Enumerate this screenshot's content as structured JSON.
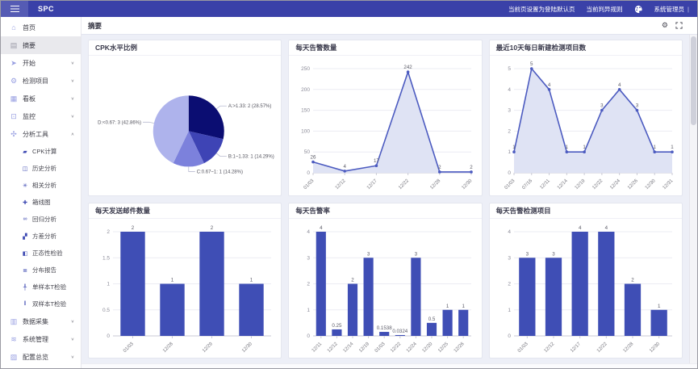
{
  "navbar": {
    "brand": "SPC",
    "set_default_link": "当前页设置为登陆默认页",
    "judge_rules_link": "当前判异规则",
    "user": "系统管理员",
    "user_divider": "|"
  },
  "tabbar": {
    "active_tab": "摘要"
  },
  "sidebar": {
    "items": [
      {
        "id": "home",
        "label": "首页",
        "icon": "home"
      },
      {
        "id": "summary",
        "label": "摘要",
        "icon": "summary",
        "active": true
      },
      {
        "id": "start",
        "label": "开始",
        "icon": "start",
        "chevron": "down"
      },
      {
        "id": "detection-items",
        "label": "检测项目",
        "icon": "gear",
        "chevron": "down"
      },
      {
        "id": "board",
        "label": "看板",
        "icon": "board",
        "chevron": "down"
      },
      {
        "id": "monitor",
        "label": "监控",
        "icon": "monitor",
        "chevron": "down"
      },
      {
        "id": "analysis-tools",
        "label": "分析工具",
        "icon": "analysis",
        "chevron": "up",
        "expanded": true,
        "children": [
          {
            "id": "cpk-calc",
            "label": "CPK计算",
            "icon": "cpk"
          },
          {
            "id": "history-analysis",
            "label": "历史分析",
            "icon": "history"
          },
          {
            "id": "correlation-analysis",
            "label": "相关分析",
            "icon": "correlation"
          },
          {
            "id": "boxplot",
            "label": "箱线图",
            "icon": "boxplot"
          },
          {
            "id": "regression-analysis",
            "label": "回归分析",
            "icon": "regression"
          },
          {
            "id": "anova",
            "label": "方差分析",
            "icon": "anova"
          },
          {
            "id": "normality-test",
            "label": "正态性检验",
            "icon": "normality"
          },
          {
            "id": "distribution-report",
            "label": "分布报告",
            "icon": "distribution"
          },
          {
            "id": "one-sample-t-test",
            "label": "单样本T检验",
            "icon": "t-one"
          },
          {
            "id": "two-sample-t-test",
            "label": "双样本T检验",
            "icon": "t-two"
          }
        ]
      },
      {
        "id": "data-collection",
        "label": "数据采集",
        "icon": "data",
        "chevron": "down"
      },
      {
        "id": "system-management",
        "label": "系统管理",
        "icon": "system",
        "chevron": "down"
      },
      {
        "id": "config-overview",
        "label": "配置总览",
        "icon": "config",
        "chevron": "down"
      }
    ]
  },
  "colors": {
    "navbar_bg": "#3a41a8",
    "content_bg": "#edeff7",
    "bar": "#3f4eb5",
    "line": "#4c5bc0",
    "area": "#dfe3f4",
    "pie": [
      "#0b0d72",
      "#3e44b5",
      "#7c81dc",
      "#aeb3ec"
    ]
  },
  "panels": [
    {
      "id": "cpk-level-ratio",
      "title": "CPK水平比例",
      "chart_data": {
        "type": "pie",
        "categories": [
          "A:>1.33",
          "B:1~1.33",
          "C:0.67~1",
          "D:<0.67"
        ],
        "values": [
          2,
          1,
          1,
          3
        ],
        "percents": [
          28.57,
          14.29,
          14.28,
          42.86
        ],
        "labels": [
          "A:>1.33: 2 (28.57%)",
          "B:1~1.33: 1 (14.29%)",
          "C:0.67~1: 1 (14.28%)",
          "D:<0.67: 3 (42.86%)"
        ],
        "colors": [
          "#0b0d72",
          "#3e44b5",
          "#7c81dc",
          "#aeb3ec"
        ]
      }
    },
    {
      "id": "daily-alert-count",
      "title": "每天告警数量",
      "chart_data": {
        "type": "line",
        "x": [
          "01/03",
          "12/12",
          "12/17",
          "12/22",
          "12/28",
          "12/30"
        ],
        "values": [
          26,
          4,
          17,
          242,
          2,
          2
        ],
        "ylim": [
          0,
          250
        ],
        "yticks": [
          0,
          50,
          100,
          150,
          200,
          250
        ],
        "color": "#4c5bc0",
        "area": "#dfe3f4"
      }
    },
    {
      "id": "new-detection-items-10d",
      "title": "最近10天每日新建检测项目数",
      "chart_data": {
        "type": "line",
        "x": [
          "01/03",
          "07/16",
          "12/11",
          "12/14",
          "12/19",
          "12/22",
          "12/24",
          "12/26",
          "12/30",
          "12/31"
        ],
        "values": [
          1,
          5,
          4,
          1,
          1,
          3,
          4,
          3,
          1,
          1
        ],
        "ylim": [
          0,
          5
        ],
        "yticks": [
          0,
          1,
          2,
          3,
          4,
          5
        ],
        "color": "#4c5bc0",
        "area": "#dfe3f4"
      }
    },
    {
      "id": "daily-emails-sent",
      "title": "每天发送邮件数量",
      "chart_data": {
        "type": "bar",
        "x": [
          "01/03",
          "12/28",
          "12/29",
          "12/30"
        ],
        "values": [
          2,
          1,
          2,
          1
        ],
        "ylim": [
          0,
          2
        ],
        "yticks": [
          0,
          0.5,
          1,
          1.5,
          2
        ],
        "color": "#3f4eb5"
      }
    },
    {
      "id": "daily-alert-rate",
      "title": "每天告警率",
      "chart_data": {
        "type": "bar",
        "x": [
          "12/11",
          "12/12",
          "12/14",
          "12/19",
          "01/03",
          "12/22",
          "12/24",
          "12/20",
          "12/25",
          "12/26"
        ],
        "values": [
          4,
          0.25,
          2,
          3,
          0.1538,
          0.0324,
          3,
          0.5,
          1,
          1
        ],
        "ylim": [
          0,
          4
        ],
        "yticks": [
          0,
          1,
          2,
          3,
          4
        ],
        "color": "#3f4eb5"
      }
    },
    {
      "id": "daily-alert-detection-items",
      "title": "每天告警检测项目",
      "chart_data": {
        "type": "bar",
        "x": [
          "01/03",
          "12/12",
          "12/17",
          "12/22",
          "12/28",
          "12/30"
        ],
        "values": [
          3,
          3,
          4,
          4,
          2,
          1
        ],
        "ylim": [
          0,
          4
        ],
        "yticks": [
          0,
          1,
          2,
          3,
          4
        ],
        "color": "#3f4eb5"
      }
    }
  ]
}
